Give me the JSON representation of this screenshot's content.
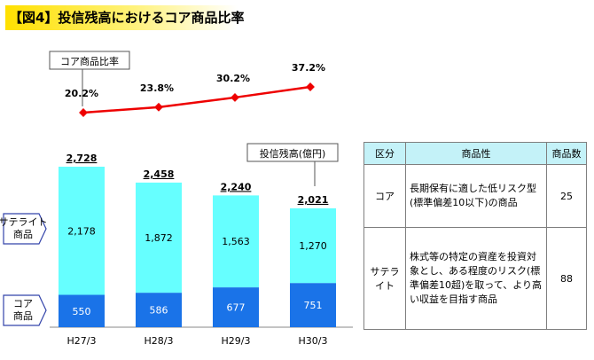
{
  "title": "【図4】投信残高におけるコア商品比率",
  "chart_data": {
    "type": "bar",
    "title": "投信残高(億円)",
    "categories": [
      "H27/3",
      "H28/3",
      "H29/3",
      "H30/3"
    ],
    "series": [
      {
        "name": "コア商品",
        "values": [
          550,
          586,
          677,
          751
        ],
        "color": "#1a73e8"
      },
      {
        "name": "サテライト商品",
        "values": [
          2178,
          1872,
          1563,
          1270
        ],
        "color": "#66ffff"
      }
    ],
    "totals": [
      "2,728",
      "2,458",
      "2,240",
      "2,021"
    ],
    "value_labels": {
      "core": [
        "550",
        "586",
        "677",
        "751"
      ],
      "satellite": [
        "2,178",
        "1,872",
        "1,563",
        "1,270"
      ]
    },
    "ratio_series": {
      "name": "コア商品比率",
      "values": [
        20.2,
        23.8,
        30.2,
        37.2
      ],
      "labels": [
        "20.2%",
        "23.8%",
        "30.2%",
        "37.2%"
      ],
      "color": "#ee0000"
    },
    "ylim": [
      0,
      3000
    ]
  },
  "legend_labels": {
    "core": "コア\n商品",
    "satellite": "サテライト\n商品",
    "ratio": "コア商品比率",
    "balance": "投信残高(億円)"
  },
  "table": {
    "headers": [
      "区分",
      "商品性",
      "商品数"
    ],
    "rows": [
      {
        "kubun": "コア",
        "desc": "長期保有に適した低リスク型\n(標準偏差10以下)の商品",
        "count": "25"
      },
      {
        "kubun": "サテライト",
        "desc": "株式等の特定の資産を投資対象とし、ある程度のリスク(標準偏差10超)を取って、より高い収益を目指す商品",
        "count": "88"
      }
    ]
  }
}
